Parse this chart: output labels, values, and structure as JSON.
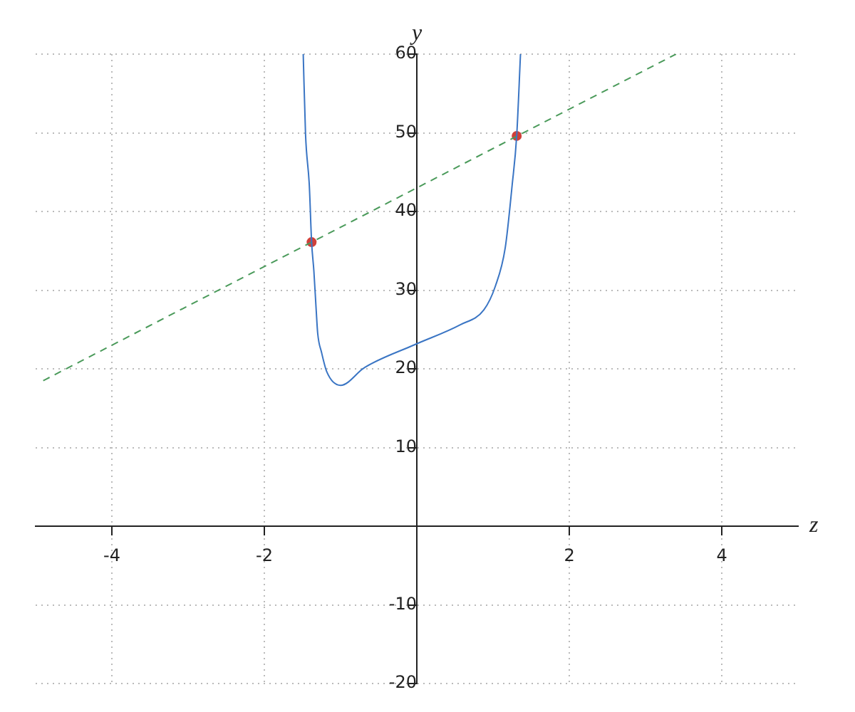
{
  "chart_data": {
    "type": "line",
    "xlabel": "z",
    "ylabel": "y",
    "xlim": [
      -5,
      5
    ],
    "ylim": [
      -20,
      60
    ],
    "xticks": [
      -4,
      -2,
      2,
      4
    ],
    "yticks": [
      -20,
      -10,
      10,
      20,
      30,
      40,
      50,
      60
    ],
    "grid": true,
    "legend": false,
    "marker": "none",
    "series": [
      {
        "type": "line",
        "color": "#3a75c4",
        "line_style": "solid",
        "x": [
          -1.49,
          -1.46,
          -1.41,
          -1.38,
          -1.35,
          -1.32,
          -1.3,
          -1.25,
          -1.18,
          -1.0,
          -0.68,
          -0.02,
          0.57,
          0.88,
          1.03,
          1.16,
          1.25,
          1.31,
          1.36
        ],
        "values": [
          60,
          49.9,
          43.3,
          36.1,
          32.4,
          27.5,
          24.5,
          22.1,
          19.6,
          17.9,
          20.2,
          23.1,
          25.6,
          27.5,
          30.5,
          35.4,
          43.3,
          49.6,
          60
        ]
      },
      {
        "type": "line",
        "color": "#4a9a5a",
        "line_style": "dashed",
        "x": [
          -4.9,
          3.4
        ],
        "values": [
          18.5,
          60
        ]
      },
      {
        "type": "scatter",
        "color": "#d0403a",
        "marker": "circle",
        "x": [
          -1.38,
          1.31
        ],
        "values": [
          36.1,
          49.6
        ]
      }
    ]
  }
}
